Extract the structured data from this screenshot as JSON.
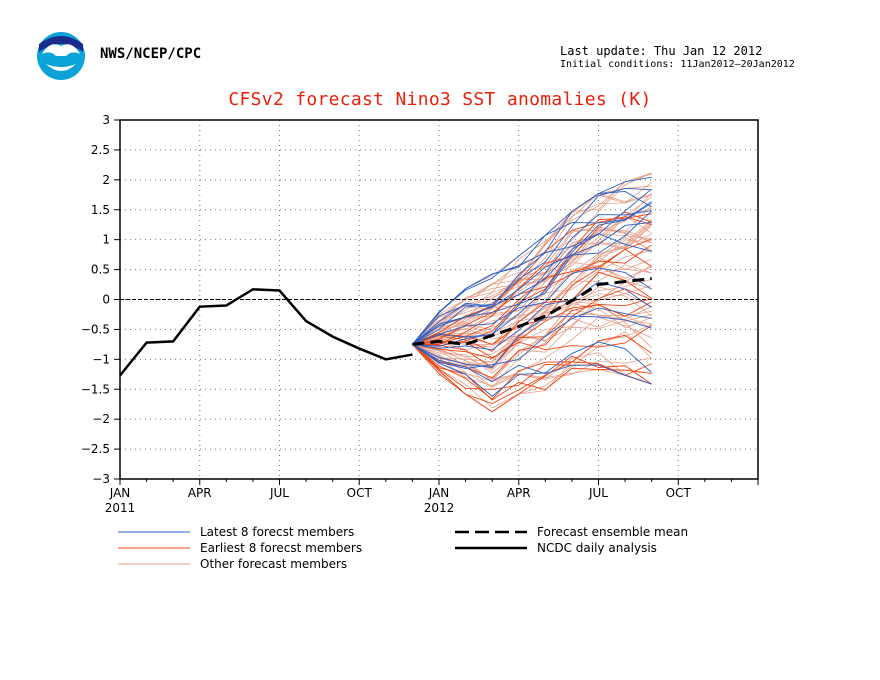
{
  "header": {
    "agency": "NWS/NCEP/CPC",
    "last_update": "Last update: Thu Jan 12 2012",
    "initial_conditions": "Initial conditions: 11Jan2012–20Jan2012",
    "logo_icon": "noaa-logo-icon"
  },
  "colors": {
    "title": "#e8200a",
    "latest": "#2a5fc8",
    "earliest": "#ee4411",
    "other": "#e6a08a",
    "analysis": "#000000",
    "mean": "#000000"
  },
  "chart_data": {
    "type": "line",
    "title": "CFSv2 forecast Nino3 SST anomalies (K)",
    "xlabel": "",
    "ylabel": "",
    "ylim": [
      -3,
      3
    ],
    "yticks": [
      3,
      2.5,
      2,
      1.5,
      1,
      0.5,
      0,
      -0.5,
      -1,
      -1.5,
      -2,
      -2.5,
      -3
    ],
    "ytick_labels": [
      "3",
      "2.5",
      "2",
      "1.5",
      "1",
      "0.5",
      "0",
      "−0.5",
      "−1",
      "−1.5",
      "−2",
      "−2.5",
      "−3"
    ],
    "xticks": [
      {
        "month": 0,
        "label": "JAN",
        "year": "2011"
      },
      {
        "month": 3,
        "label": "APR",
        "year": ""
      },
      {
        "month": 6,
        "label": "JUL",
        "year": ""
      },
      {
        "month": 9,
        "label": "OCT",
        "year": ""
      },
      {
        "month": 12,
        "label": "JAN",
        "year": "2012"
      },
      {
        "month": 15,
        "label": "APR",
        "year": ""
      },
      {
        "month": 18,
        "label": "JUL",
        "year": ""
      },
      {
        "month": 21,
        "label": "OCT",
        "year": ""
      }
    ],
    "grid": true,
    "zero_line": true,
    "legend": [
      {
        "label": "Latest 8 forecst members",
        "style": "latest"
      },
      {
        "label": "Earliest 8 forecst members",
        "style": "earliest"
      },
      {
        "label": "Other forecast members",
        "style": "other"
      },
      {
        "label": "Forecast ensemble mean",
        "style": "mean"
      },
      {
        "label": "NCDC daily analysis",
        "style": "analysis"
      }
    ],
    "series": [
      {
        "name": "NCDC daily analysis",
        "style": "analysis",
        "x": [
          "Jan 2011",
          "Feb 2011",
          "Mar 2011",
          "Apr 2011",
          "May 2011",
          "Jun 2011",
          "Jul 2011",
          "Aug 2011",
          "Sep 2011",
          "Oct 2011",
          "Nov 2011",
          "Dec 2011"
        ],
        "values": [
          -1.27,
          -0.72,
          -0.7,
          -0.12,
          -0.1,
          0.17,
          0.15,
          -0.36,
          -0.62,
          -0.82,
          -1.0,
          -0.92
        ]
      },
      {
        "name": "Forecast ensemble mean",
        "style": "mean",
        "x": [
          "Dec 2011",
          "Jan 2012",
          "Feb 2012",
          "Mar 2012",
          "Apr 2012",
          "May 2012",
          "Jun 2012",
          "Jul 2012",
          "Aug 2012",
          "Sep 2012"
        ],
        "values": [
          -0.75,
          -0.7,
          -0.75,
          -0.6,
          -0.45,
          -0.28,
          -0.02,
          0.25,
          0.3,
          0.35
        ]
      }
    ],
    "ensemble_start": {
      "x": "Dec 2011",
      "value": -0.75
    },
    "ensemble_months": [
      "Dec 2011",
      "Jan 2012",
      "Feb 2012",
      "Mar 2012",
      "Apr 2012",
      "May 2012",
      "Jun 2012",
      "Jul 2012",
      "Aug 2012",
      "Sep 2012"
    ],
    "ensemble_ranges": {
      "low": [
        -0.75,
        -1.25,
        -1.6,
        -1.9,
        -1.6,
        -1.55,
        -1.3,
        -1.2,
        -1.3,
        -1.45
      ],
      "high": [
        -0.75,
        -0.2,
        0.2,
        0.45,
        0.75,
        1.1,
        1.5,
        1.8,
        2.0,
        2.15
      ]
    },
    "ensemble_counts": {
      "latest": 8,
      "earliest": 8,
      "other": 24
    }
  }
}
